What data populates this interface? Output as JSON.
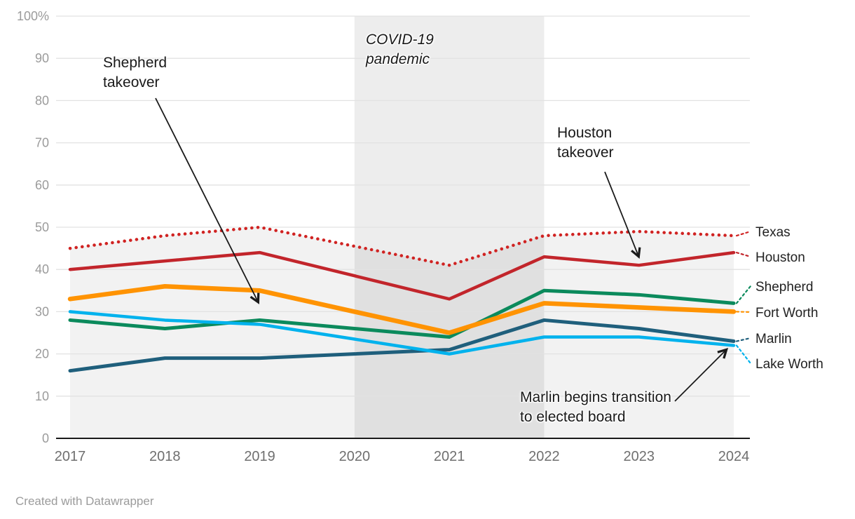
{
  "chart_data": {
    "type": "line",
    "x": [
      2017,
      2018,
      2019,
      2020,
      2021,
      2022,
      2023,
      2024
    ],
    "ylim": [
      0,
      100
    ],
    "yticks": [
      0,
      10,
      20,
      30,
      40,
      50,
      60,
      70,
      80,
      90,
      100
    ],
    "ytick_labels": [
      "0",
      "10",
      "20",
      "30",
      "40",
      "50",
      "60",
      "70",
      "80",
      "90",
      "100%"
    ],
    "grid": "horizontal",
    "legend_position": "right-edge-labels",
    "series": [
      {
        "name": "Texas",
        "color": "#d02322",
        "style": "dotted",
        "width": 4.5,
        "values": [
          45,
          48,
          50,
          45.5,
          41,
          48,
          49,
          48
        ]
      },
      {
        "name": "Houston",
        "color": "#c2252b",
        "style": "solid",
        "width": 4.5,
        "values": [
          40,
          42,
          44,
          38.5,
          33,
          43,
          41,
          44
        ]
      },
      {
        "name": "Shepherd",
        "color": "#0b8a5c",
        "style": "solid",
        "width": 5,
        "values": [
          28,
          26,
          28,
          26,
          24,
          35,
          34,
          32
        ]
      },
      {
        "name": "Fort Worth",
        "color": "#ff9302",
        "style": "solid",
        "width": 6.5,
        "values": [
          33,
          36,
          35,
          30,
          25,
          32,
          31,
          30
        ]
      },
      {
        "name": "Marlin",
        "color": "#1f5f7c",
        "style": "solid",
        "width": 5,
        "values": [
          16,
          19,
          19,
          20,
          21,
          28,
          26,
          23
        ]
      },
      {
        "name": "Lake Worth",
        "color": "#00b2ed",
        "style": "solid",
        "width": 4.5,
        "values": [
          30,
          28,
          27,
          23.5,
          20,
          24,
          24,
          22
        ]
      }
    ],
    "highlight_range": {
      "from": 2020,
      "to": 2022,
      "label": "COVID-19 pandemic"
    },
    "area_fill_under_series": "Texas"
  },
  "annotations": {
    "shepherd": {
      "line1": "Shepherd",
      "line2": "takeover"
    },
    "covid": {
      "line1": "COVID-19",
      "line2": "pandemic"
    },
    "houston": {
      "line1": "Houston",
      "line2": "takeover"
    },
    "marlin": {
      "line1": "Marlin begins transition",
      "line2": "to elected board"
    }
  },
  "footer": {
    "credit": "Created with Datawrapper"
  },
  "colors": {
    "covid_band": "#ededed",
    "area_fill": "rgba(0,0,0,0.05)",
    "gridline": "#e2e2e2",
    "axis_line": "#1a1a1a",
    "y_label": "#9b9b9b",
    "x_label": "#6f6f6f",
    "series_label": "#222222",
    "arrow": "#1a1a1a"
  }
}
